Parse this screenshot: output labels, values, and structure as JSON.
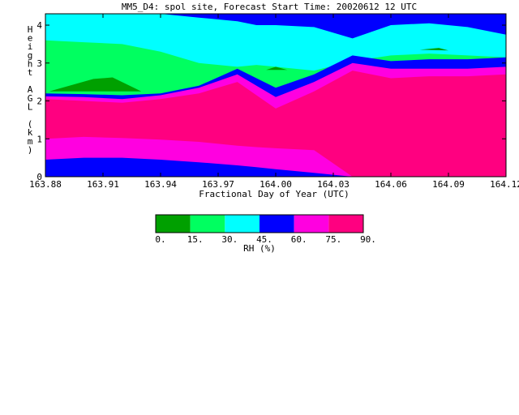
{
  "chart_data": {
    "type": "heatmap",
    "title": "MM5_D4: spol site,  Forecast Start Time: 20020612 12 UTC",
    "xlabel": "Fractional Day of Year (UTC)",
    "ylabel": "Height AGL (km)",
    "xlim": [
      163.88,
      164.12
    ],
    "ylim": [
      0,
      4.3
    ],
    "x_ticks": [
      "163.88",
      "163.91",
      "163.94",
      "163.97",
      "164.00",
      "164.03",
      "164.06",
      "164.09",
      "164.12"
    ],
    "y_ticks": [
      "0",
      "1",
      "2",
      "3",
      "4"
    ],
    "colorbar": {
      "label": "RH (%)",
      "tick_labels": [
        "0.",
        "15.",
        "30.",
        "45.",
        "60.",
        "75.",
        "90."
      ],
      "levels": [
        0,
        15,
        30,
        45,
        60,
        75,
        90
      ],
      "colors": [
        "#00a000",
        "#00ff60",
        "#00ffff",
        "#0000ff",
        "#ff00e0",
        "#ff0080"
      ]
    },
    "x": [
      163.88,
      163.9,
      163.92,
      163.94,
      163.96,
      163.98,
      163.99,
      164.0,
      164.02,
      164.04,
      164.06,
      164.08,
      164.1,
      164.12
    ],
    "bands": [
      {
        "range": "75-90",
        "color": "#ff0080",
        "lower": [
          1.0,
          1.05,
          1.02,
          0.98,
          0.92,
          0.82,
          0.78,
          0.75,
          0.7,
          0.0,
          0.0,
          0.0,
          0.0,
          0.0
        ],
        "upper": [
          2.05,
          2.0,
          1.95,
          2.05,
          2.2,
          2.5,
          2.15,
          1.8,
          2.25,
          2.8,
          2.6,
          2.65,
          2.65,
          2.7
        ]
      },
      {
        "range": "60-75",
        "color": "#ff00e0",
        "lower": [
          0.45,
          0.5,
          0.5,
          0.45,
          0.38,
          0.3,
          0.25,
          0.2,
          0.1,
          0.0,
          0.0,
          0.0,
          0.0,
          0.0
        ],
        "upper": [
          2.12,
          2.1,
          2.05,
          2.15,
          2.35,
          2.7,
          2.4,
          2.1,
          2.5,
          3.0,
          2.85,
          2.85,
          2.85,
          2.9
        ]
      },
      {
        "range": "45-60",
        "color": "#0000ff",
        "lower": [
          0.0,
          0.0,
          0.0,
          0.0,
          0.0,
          0.0,
          0.0,
          0.0,
          0.0,
          0.0,
          0.0,
          0.0,
          0.0,
          0.0
        ],
        "upper": [
          2.2,
          2.18,
          2.15,
          2.2,
          2.4,
          2.85,
          2.6,
          2.35,
          2.7,
          3.2,
          3.05,
          3.1,
          3.1,
          3.15
        ]
      },
      {
        "range": "30-45",
        "color": "#00ffff",
        "upper_edge": [
          4.3,
          4.3,
          4.3,
          4.3,
          4.2,
          4.1,
          4.0,
          4.0,
          3.95,
          3.65,
          4.0,
          4.05,
          3.95,
          3.75
        ]
      },
      {
        "range": "15-30",
        "color": "#00ff60",
        "upper": [
          3.6,
          3.55,
          3.5,
          3.3,
          3.0,
          2.9,
          2.95,
          2.9,
          2.8,
          3.05,
          3.2,
          3.25,
          3.2,
          3.15
        ]
      },
      {
        "range": "0-15",
        "color": "#00a000",
        "points": [
          [
            163.882,
            2.25
          ],
          [
            163.905,
            2.58
          ],
          [
            163.915,
            2.62
          ],
          [
            163.93,
            2.25
          ]
        ]
      },
      {
        "range": "0-15",
        "color": "#00a000",
        "points": [
          [
            163.995,
            2.82
          ],
          [
            164.0,
            2.9
          ],
          [
            164.006,
            2.82
          ]
        ]
      },
      {
        "range": "0-15",
        "color": "#00a000",
        "points": [
          [
            164.075,
            3.35
          ],
          [
            164.085,
            3.4
          ],
          [
            164.09,
            3.33
          ]
        ]
      }
    ]
  }
}
